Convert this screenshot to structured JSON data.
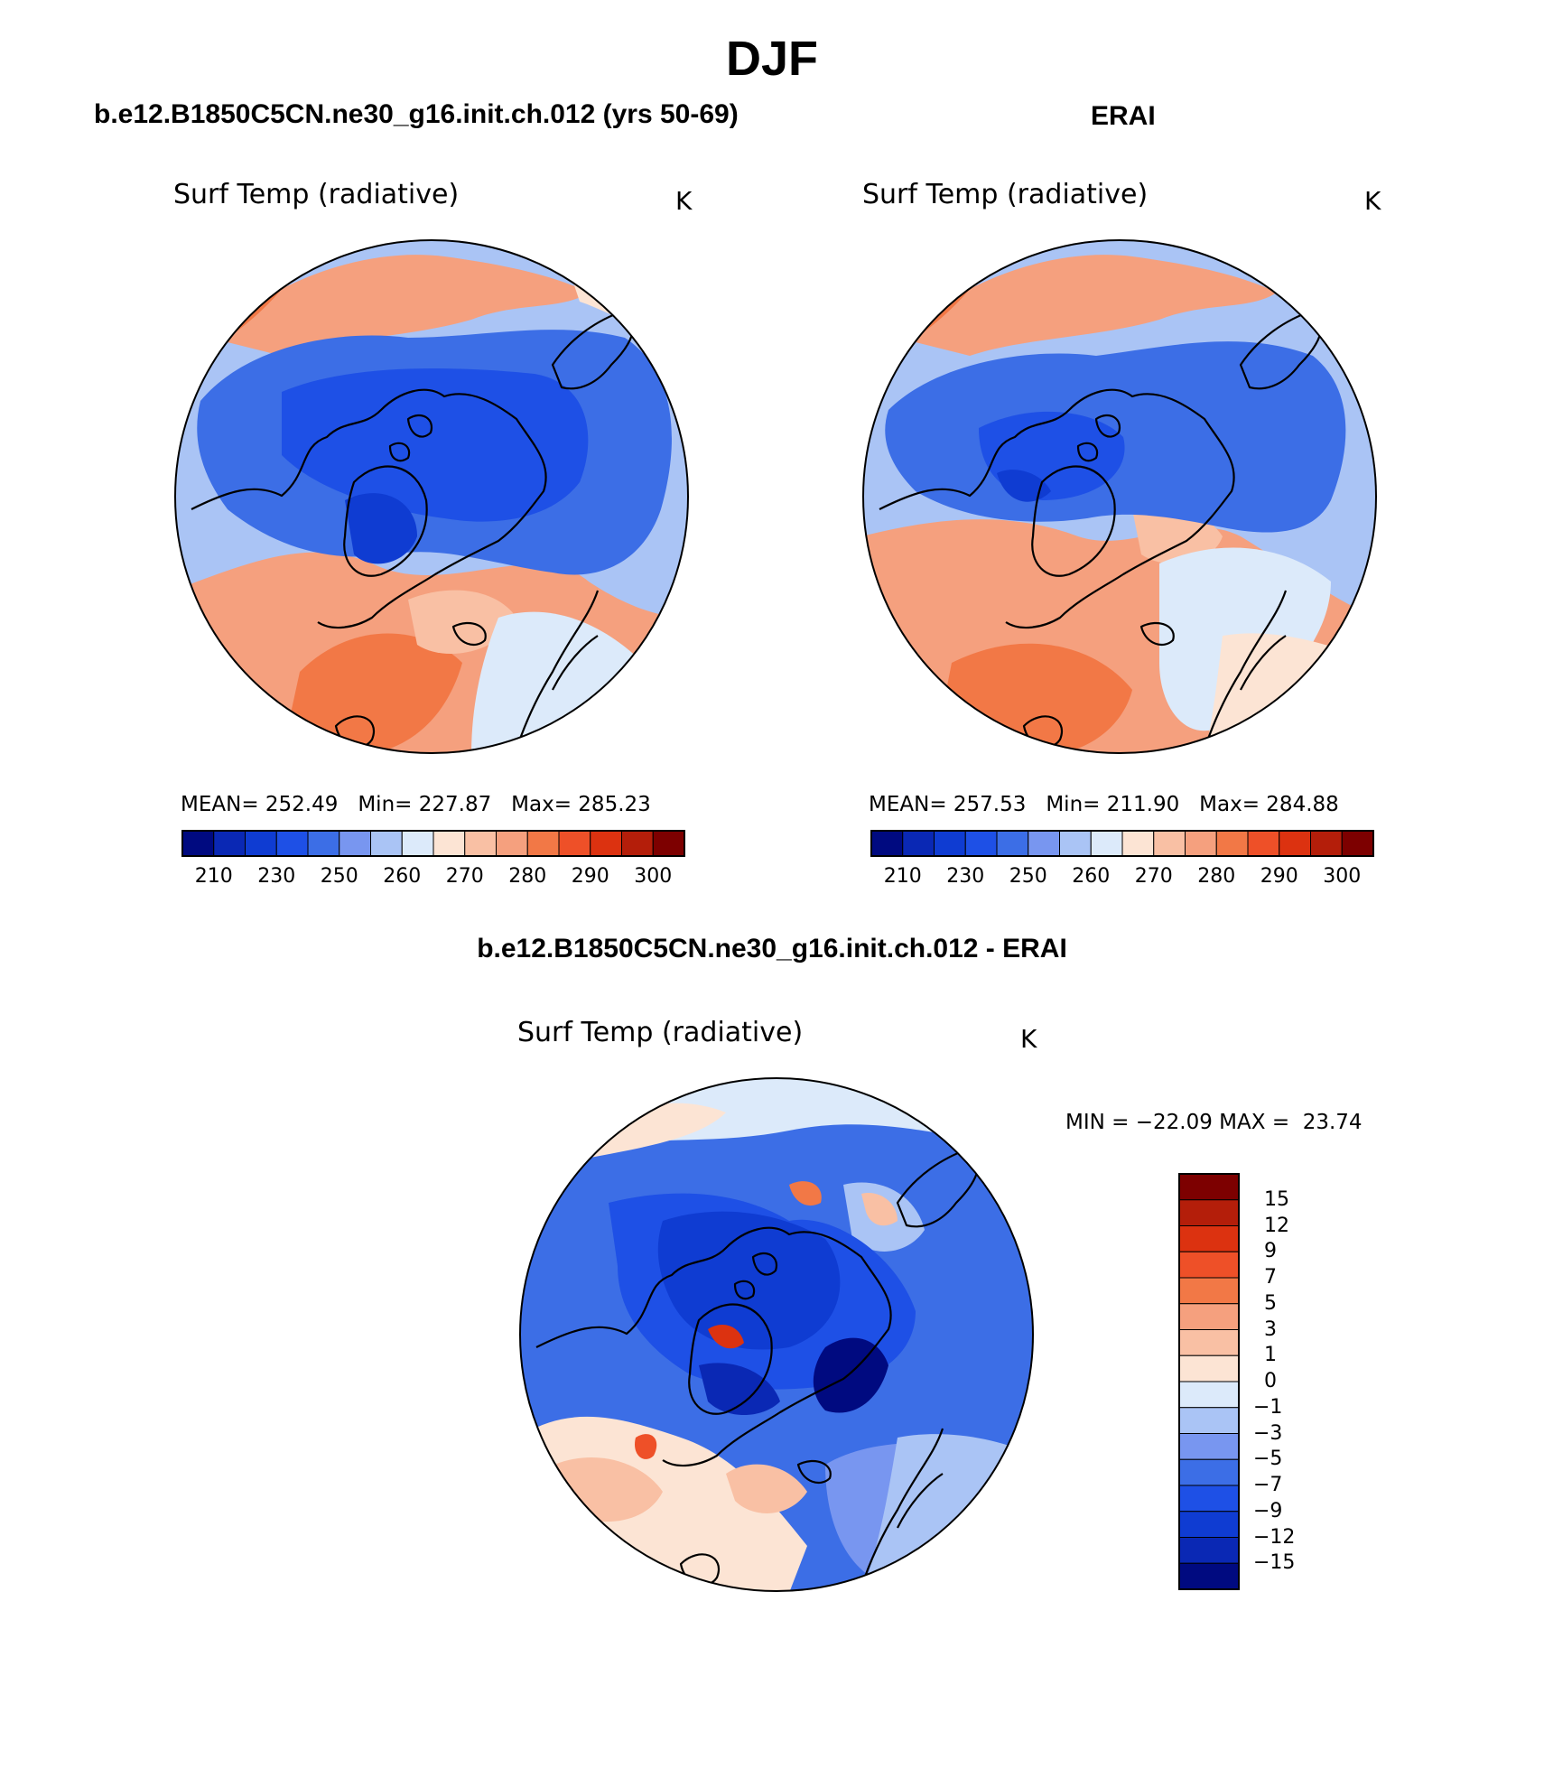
{
  "figure": {
    "title": "DJF"
  },
  "panels": [
    {
      "title": "b.e12.B1850C5CN.ne30_g16.init.ch.012 (yrs 50-69)",
      "variable": "Surf Temp (radiative)",
      "units": "K",
      "stats": {
        "mean_label": "MEAN=",
        "mean": "252.49",
        "min_label": "Min=",
        "min": "227.87",
        "max_label": "Max=",
        "max": "285.23"
      }
    },
    {
      "title": "ERAI",
      "variable": "Surf Temp (radiative)",
      "units": "K",
      "stats": {
        "mean_label": "MEAN=",
        "mean": "257.53",
        "min_label": "Min=",
        "min": "211.90",
        "max_label": "Max=",
        "max": "284.88"
      }
    },
    {
      "title": "b.e12.B1850C5CN.ne30_g16.init.ch.012 - ERAI",
      "variable": "Surf Temp (radiative)",
      "units": "K",
      "stats": {
        "min_label": "MIN =",
        "min": "−22.09",
        "max_label": "MAX =",
        "max": "23.74"
      }
    }
  ],
  "colorbar_abs": {
    "colors": [
      "#000a80",
      "#0a28b4",
      "#0f3cd2",
      "#1e50e6",
      "#3c6ee6",
      "#7896f0",
      "#aac4f5",
      "#dceafa",
      "#fce4d4",
      "#f9c0a4",
      "#f5a07e",
      "#f27846",
      "#ee5028",
      "#dc3210",
      "#b41e0a",
      "#7d0000"
    ],
    "labels": [
      "210",
      "230",
      "250",
      "260",
      "270",
      "280",
      "290",
      "300"
    ]
  },
  "colorbar_diff": {
    "colors": [
      "#7d0000",
      "#b41e0a",
      "#dc3210",
      "#ee5028",
      "#f27846",
      "#f5a07e",
      "#f9c0a4",
      "#fce4d4",
      "#dceafa",
      "#aac4f5",
      "#7896f0",
      "#3c6ee6",
      "#1e50e6",
      "#0f3cd2",
      "#0a28b4",
      "#000a80"
    ],
    "labels": [
      "15",
      "12",
      "9",
      "7",
      "5",
      "3",
      "1",
      "0",
      "−1",
      "−3",
      "−5",
      "−7",
      "−9",
      "−12",
      "−15"
    ]
  }
}
